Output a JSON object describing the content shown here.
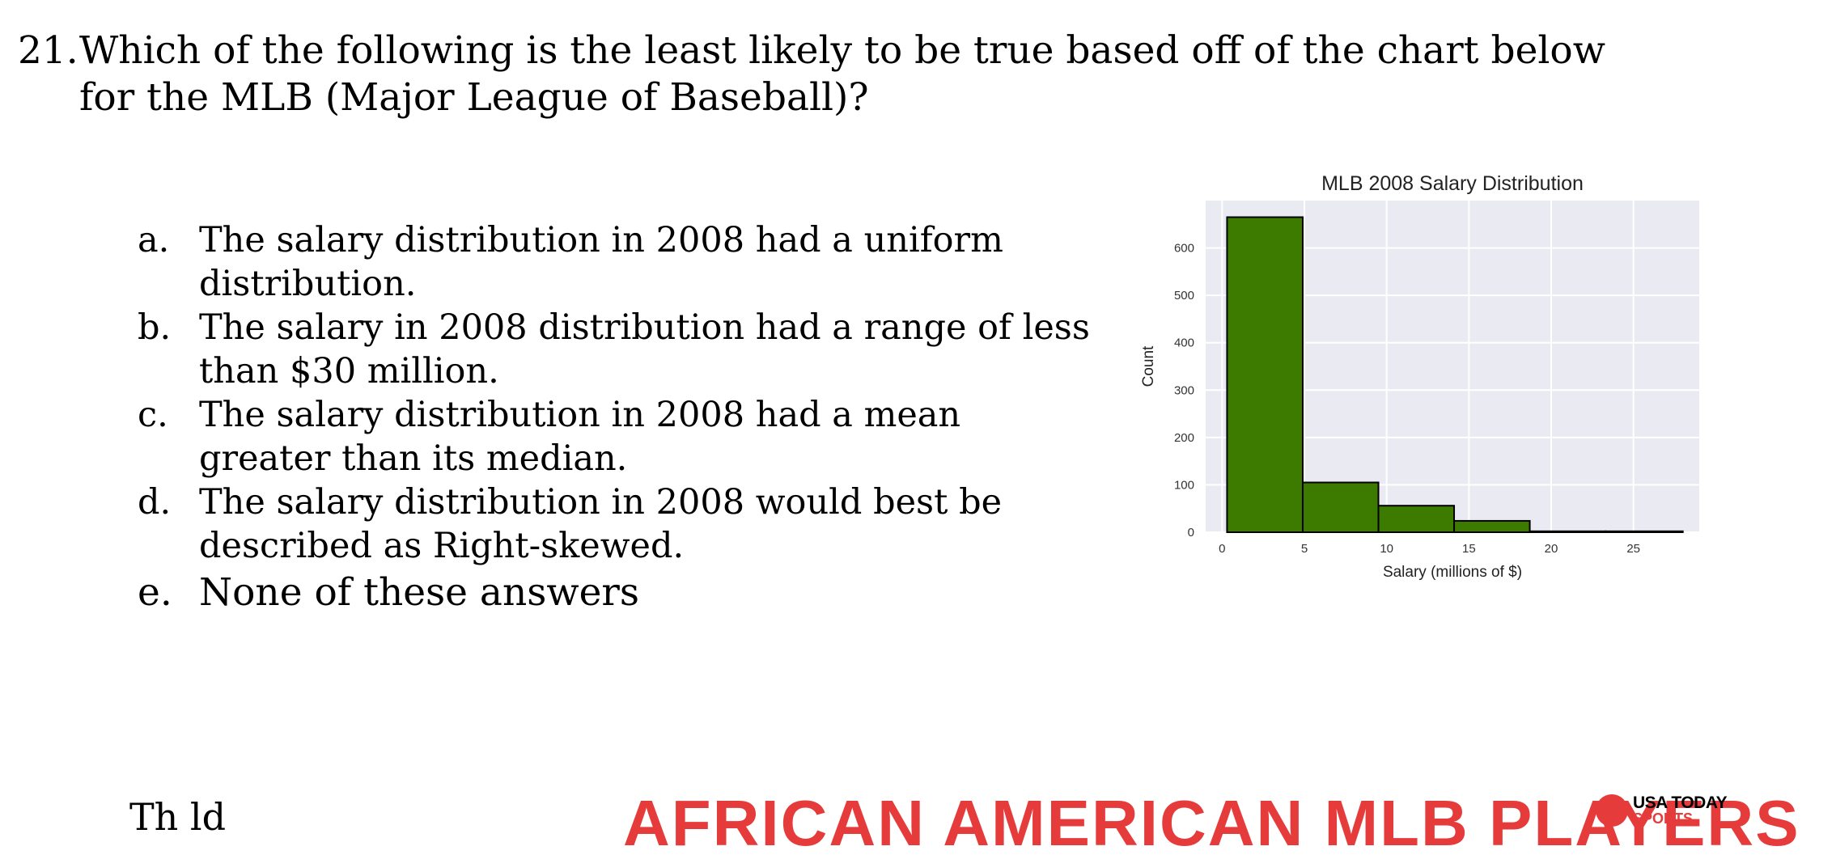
{
  "question": {
    "number": "21.",
    "text": "Which of the following is the least likely to be true based off of the chart below for the MLB (Major League of Baseball)?"
  },
  "options": [
    {
      "letter": "a.",
      "text": "The salary distribution in 2008 had a uniform distribution."
    },
    {
      "letter": "b.",
      "text": "The salary in 2008 distribution had a range of less than $30 million."
    },
    {
      "letter": "c.",
      "text": "The salary distribution in 2008 had a mean greater than its median."
    },
    {
      "letter": "d.",
      "text": "The salary distribution in 2008 would best be described as Right-skewed."
    },
    {
      "letter": "e.",
      "text": "None of these answers"
    }
  ],
  "chart_data": {
    "type": "bar",
    "title": "MLB 2008 Salary Distribution",
    "xlabel": "Salary (millions of $)",
    "ylabel": "Count",
    "bins": [
      {
        "start": 0.3,
        "end": 4.9,
        "count": 665
      },
      {
        "start": 4.9,
        "end": 9.5,
        "count": 105
      },
      {
        "start": 9.5,
        "end": 14.1,
        "count": 56
      },
      {
        "start": 14.1,
        "end": 18.7,
        "count": 24
      },
      {
        "start": 18.7,
        "end": 23.3,
        "count": 2
      },
      {
        "start": 23.3,
        "end": 28.0,
        "count": 2
      }
    ],
    "xticks": [
      0,
      5,
      10,
      15,
      20,
      25
    ],
    "yticks": [
      0,
      100,
      200,
      300,
      400,
      500,
      600
    ],
    "xlim": [
      -1,
      29
    ],
    "ylim": [
      0,
      700
    ],
    "grid": true,
    "colors": {
      "bar": "#3d7a00",
      "edge": "#000000",
      "background": "#eaeaf2",
      "grid": "#ffffff"
    }
  },
  "footer": {
    "banner": "AFRICAN AMERICAN MLB PLAYERS",
    "left_text": "Th                          ld",
    "logo": "USA TODAY",
    "logo_sub": "SPORTS"
  }
}
